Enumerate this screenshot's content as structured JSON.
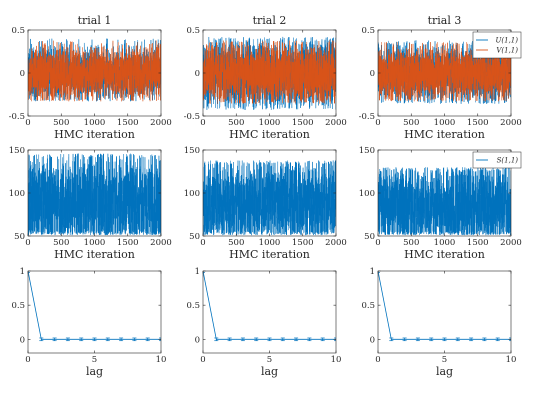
{
  "colors": {
    "blue": "#0072BD",
    "orange": "#D95319",
    "axis": "#262626"
  },
  "legends": {
    "trace_uv": [
      "U(1,1)",
      "V(1,1)"
    ],
    "trace_s": [
      "S(1,1)"
    ]
  },
  "chart_data": [
    {
      "id": "uv-trial-1",
      "type": "line",
      "title": "trial 1",
      "xlabel": "HMC iteration",
      "ylabel": "",
      "xlim": [
        0,
        2000
      ],
      "ylim": [
        -0.5,
        0.5
      ],
      "xticks": [
        0,
        500,
        1000,
        1500,
        2000
      ],
      "yticks": [
        -0.5,
        0,
        0.5
      ],
      "xtick_labels": [
        "0",
        "500",
        "1000",
        "1500",
        "2000"
      ],
      "ytick_labels": [
        "-0.5",
        "0",
        "0.5"
      ],
      "legend": "none",
      "grid": false,
      "series": [
        {
          "color": "#0072BD",
          "trace": {
            "n": 2000,
            "center": 0,
            "spread": 0.25,
            "min": -0.33,
            "max": 0.4,
            "seed": 11
          }
        },
        {
          "color": "#D95319",
          "trace": {
            "n": 2000,
            "center": 0,
            "spread": 0.24,
            "min": -0.33,
            "max": 0.38,
            "seed": 12
          }
        }
      ]
    },
    {
      "id": "uv-trial-2",
      "type": "line",
      "title": "trial 2",
      "xlabel": "HMC iteration",
      "ylabel": "",
      "xlim": [
        0,
        2000
      ],
      "ylim": [
        -0.5,
        0.5
      ],
      "xticks": [
        0,
        500,
        1000,
        1500,
        2000
      ],
      "yticks": [
        -0.5,
        0,
        0.5
      ],
      "xtick_labels": [
        "0",
        "500",
        "1000",
        "1500",
        "2000"
      ],
      "ytick_labels": [
        "-0.5",
        "0",
        "0.5"
      ],
      "legend": "none",
      "grid": false,
      "series": [
        {
          "color": "#0072BD",
          "trace": {
            "n": 2000,
            "center": 0,
            "spread": 0.33,
            "min": -0.43,
            "max": 0.42,
            "seed": 21
          }
        },
        {
          "color": "#D95319",
          "trace": {
            "n": 2000,
            "center": 0,
            "spread": 0.27,
            "min": -0.36,
            "max": 0.38,
            "seed": 22
          }
        }
      ]
    },
    {
      "id": "uv-trial-3",
      "type": "line",
      "title": "trial 3",
      "xlabel": "HMC iteration",
      "ylabel": "",
      "xlim": [
        0,
        2000
      ],
      "ylim": [
        -0.5,
        0.5
      ],
      "xticks": [
        0,
        500,
        1000,
        1500,
        2000
      ],
      "yticks": [
        -0.5,
        0,
        0.5
      ],
      "xtick_labels": [
        "0",
        "500",
        "1000",
        "1500",
        "2000"
      ],
      "ytick_labels": [
        "-0.5",
        "0",
        "0.5"
      ],
      "legend": "top-right",
      "grid": false,
      "series": [
        {
          "name": "U(1,1)",
          "color": "#0072BD",
          "trace": {
            "n": 2000,
            "center": 0,
            "spread": 0.27,
            "min": -0.36,
            "max": 0.38,
            "seed": 31
          }
        },
        {
          "name": "V(1,1)",
          "color": "#D95319",
          "trace": {
            "n": 2000,
            "center": 0,
            "spread": 0.25,
            "min": -0.33,
            "max": 0.36,
            "seed": 32
          }
        }
      ]
    },
    {
      "id": "s-trial-1",
      "type": "line",
      "title": "",
      "xlabel": "HMC iteration",
      "ylabel": "",
      "xlim": [
        0,
        2000
      ],
      "ylim": [
        50,
        150
      ],
      "xticks": [
        0,
        500,
        1000,
        1500,
        2000
      ],
      "yticks": [
        50,
        100,
        150
      ],
      "xtick_labels": [
        "0",
        "500",
        "1000",
        "1500",
        "2000"
      ],
      "ytick_labels": [
        "50",
        "100",
        "150"
      ],
      "legend": "none",
      "grid": false,
      "series": [
        {
          "color": "#0072BD",
          "trace": {
            "n": 2000,
            "center": 88,
            "spread": 50,
            "min": 51,
            "max": 146,
            "seed": 41
          }
        }
      ]
    },
    {
      "id": "s-trial-2",
      "type": "line",
      "title": "",
      "xlabel": "HMC iteration",
      "ylabel": "",
      "xlim": [
        0,
        2000
      ],
      "ylim": [
        50,
        150
      ],
      "xticks": [
        0,
        500,
        1000,
        1500,
        2000
      ],
      "yticks": [
        50,
        100,
        150
      ],
      "xtick_labels": [
        "0",
        "500",
        "1000",
        "1500",
        "2000"
      ],
      "ytick_labels": [
        "50",
        "100",
        "150"
      ],
      "legend": "none",
      "grid": false,
      "series": [
        {
          "color": "#0072BD",
          "trace": {
            "n": 2000,
            "center": 88,
            "spread": 42,
            "min": 51,
            "max": 138,
            "seed": 51
          }
        }
      ]
    },
    {
      "id": "s-trial-3",
      "type": "line",
      "title": "",
      "xlabel": "HMC iteration",
      "ylabel": "",
      "xlim": [
        0,
        2000
      ],
      "ylim": [
        50,
        150
      ],
      "xticks": [
        0,
        500,
        1000,
        1500,
        2000
      ],
      "yticks": [
        50,
        100,
        150
      ],
      "xtick_labels": [
        "0",
        "500",
        "1000",
        "1500",
        "2000"
      ],
      "ytick_labels": [
        "50",
        "100",
        "150"
      ],
      "legend": "top-right",
      "grid": false,
      "series": [
        {
          "name": "S(1,1)",
          "color": "#0072BD",
          "trace": {
            "n": 2000,
            "center": 84,
            "spread": 42,
            "min": 51,
            "max": 130,
            "seed": 61
          }
        }
      ]
    },
    {
      "id": "acf-trial-1",
      "type": "line",
      "title": "",
      "xlabel": "lag",
      "ylabel": "",
      "xlim": [
        0,
        10
      ],
      "ylim": [
        -0.2,
        1
      ],
      "xticks": [
        0,
        5,
        10
      ],
      "yticks": [
        0,
        0.5,
        1
      ],
      "xtick_labels": [
        "0",
        "5",
        "10"
      ],
      "ytick_labels": [
        "0",
        "0.5",
        "1"
      ],
      "legend": "none",
      "grid": false,
      "errorbar_half_width": 0.02,
      "series": [
        {
          "color": "#0072BD",
          "x": [
            0,
            1,
            2,
            3,
            4,
            5,
            6,
            7,
            8,
            9,
            10
          ],
          "values": [
            1,
            0,
            0,
            0,
            0,
            0,
            0,
            0,
            0,
            0,
            0
          ]
        }
      ]
    },
    {
      "id": "acf-trial-2",
      "type": "line",
      "title": "",
      "xlabel": "lag",
      "ylabel": "",
      "xlim": [
        0,
        10
      ],
      "ylim": [
        -0.2,
        1
      ],
      "xticks": [
        0,
        5,
        10
      ],
      "yticks": [
        0,
        0.5,
        1
      ],
      "xtick_labels": [
        "0",
        "5",
        "10"
      ],
      "ytick_labels": [
        "0",
        "0.5",
        "1"
      ],
      "legend": "none",
      "grid": false,
      "errorbar_half_width": 0.02,
      "series": [
        {
          "color": "#0072BD",
          "x": [
            0,
            1,
            2,
            3,
            4,
            5,
            6,
            7,
            8,
            9,
            10
          ],
          "values": [
            1,
            0,
            0,
            0,
            0,
            0,
            0,
            0,
            0,
            0,
            0
          ]
        }
      ]
    },
    {
      "id": "acf-trial-3",
      "type": "line",
      "title": "",
      "xlabel": "lag",
      "ylabel": "",
      "xlim": [
        0,
        10
      ],
      "ylim": [
        -0.2,
        1
      ],
      "xticks": [
        0,
        5,
        10
      ],
      "yticks": [
        0,
        0.5,
        1
      ],
      "xtick_labels": [
        "0",
        "5",
        "10"
      ],
      "ytick_labels": [
        "0",
        "0.5",
        "1"
      ],
      "legend": "none",
      "grid": false,
      "errorbar_half_width": 0.02,
      "series": [
        {
          "color": "#0072BD",
          "x": [
            0,
            1,
            2,
            3,
            4,
            5,
            6,
            7,
            8,
            9,
            10
          ],
          "values": [
            1,
            0,
            0,
            0,
            0,
            0,
            0,
            0,
            0,
            0,
            0
          ]
        }
      ]
    }
  ]
}
